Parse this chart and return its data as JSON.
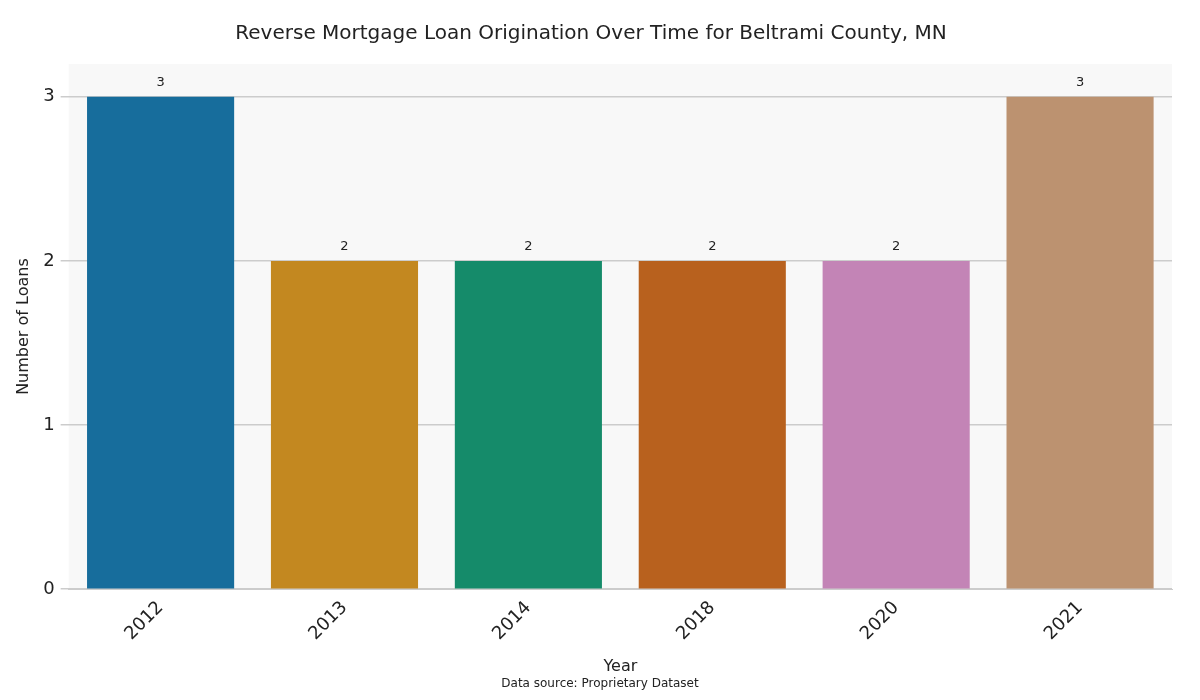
{
  "chart_data": {
    "type": "bar",
    "title": "Reverse Mortgage Loan Origination Over Time for Beltrami County, MN",
    "xlabel": "Year",
    "ylabel": "Number of Loans",
    "categories": [
      "2012",
      "2013",
      "2014",
      "2018",
      "2020",
      "2021"
    ],
    "values": [
      3,
      2,
      2,
      2,
      2,
      3
    ],
    "colors": [
      "#176d9c",
      "#c38820",
      "#158b6a",
      "#b8611e",
      "#c384b6",
      "#bc9270"
    ],
    "ylim": [
      0,
      3.2
    ],
    "yticks": [
      0,
      1,
      2,
      3
    ],
    "grid": "y",
    "legend": false,
    "data_labels": true,
    "annotations": [
      "Data source: Proprietary Dataset"
    ]
  }
}
